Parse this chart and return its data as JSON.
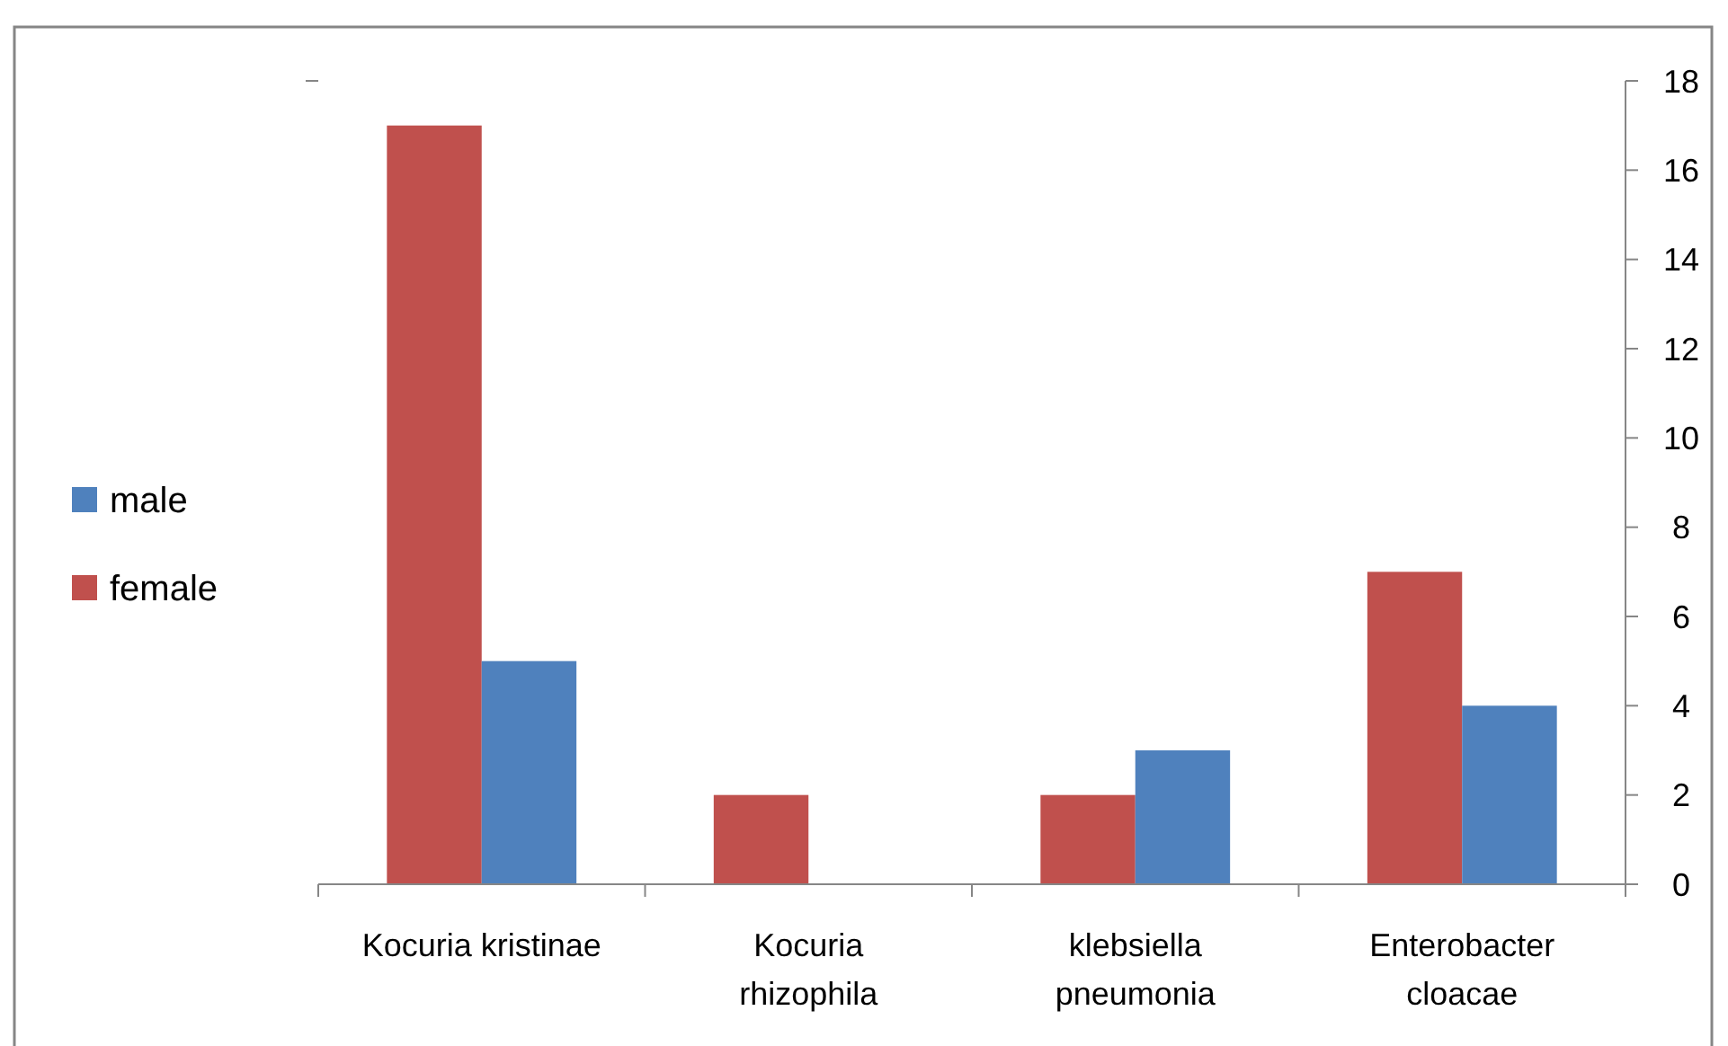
{
  "chart_data": {
    "type": "bar",
    "categories": [
      "Kocuria kristinae",
      "Kocuria rhizophila",
      "klebsiella pneumonia",
      "Enterobacter cloacae"
    ],
    "series": [
      {
        "name": "female",
        "color": "#c0504d",
        "values": [
          17,
          2,
          2,
          7
        ]
      },
      {
        "name": "male",
        "color": "#4f81bd",
        "values": [
          5,
          0,
          3,
          4
        ]
      }
    ],
    "ylim": [
      0,
      18
    ],
    "yticks": [
      0,
      2,
      4,
      6,
      8,
      10,
      12,
      14,
      16,
      18
    ],
    "grid": false,
    "legend": "left"
  }
}
